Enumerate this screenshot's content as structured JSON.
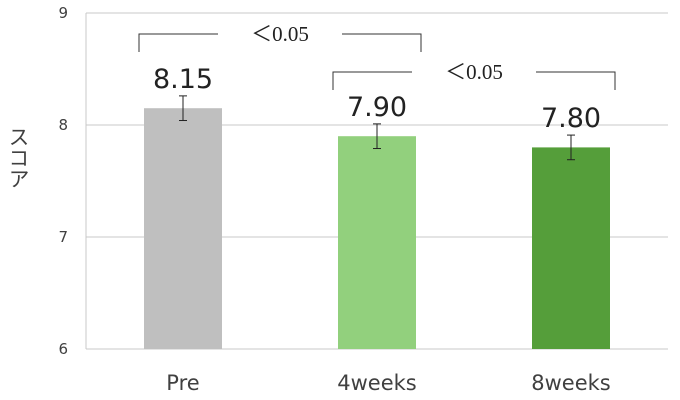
{
  "chart_data": {
    "type": "bar",
    "categories": [
      "Pre",
      "4weeks",
      "8weeks"
    ],
    "values": [
      8.15,
      7.9,
      7.8
    ],
    "error": [
      0.11,
      0.11,
      0.11
    ],
    "value_labels": [
      "8.15",
      "7.90",
      "7.80"
    ],
    "colors": [
      "#bfbfbf",
      "#92d07d",
      "#559e3a"
    ],
    "title": "",
    "xlabel": "",
    "ylabel": "スコア",
    "ylim": [
      6,
      9
    ],
    "yticks": [
      "6",
      "7",
      "8",
      "9"
    ],
    "grid": true,
    "annotations": [
      {
        "text": "＜0.05",
        "from": "Pre",
        "to": "4weeks"
      },
      {
        "text": "＜0.05",
        "from": "4weeks",
        "to": "8weeks"
      }
    ]
  }
}
